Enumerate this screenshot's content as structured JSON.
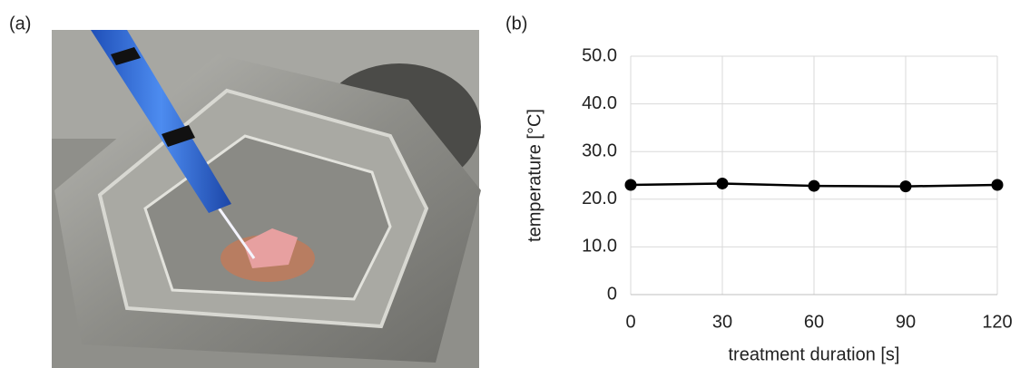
{
  "panel_labels": [
    "(a)",
    "(b)"
  ],
  "chart_data": {
    "type": "line",
    "x_label": "treatment duration [s]",
    "y_label": "temperature [°C]",
    "x": [
      0,
      30,
      60,
      90,
      120
    ],
    "series": [
      {
        "color": "#000000",
        "values": [
          23.0,
          23.3,
          22.8,
          22.7,
          23.0
        ]
      }
    ],
    "xlim": [
      0,
      120
    ],
    "xticks": [
      0,
      30,
      60,
      90,
      120
    ],
    "ylim": [
      0,
      50
    ],
    "yticks": [
      0,
      {
        "value": 10,
        "label": "10.0"
      },
      {
        "value": 20,
        "label": "20.0"
      },
      {
        "value": 30,
        "label": "30.0"
      },
      {
        "value": 40,
        "label": "40.0"
      },
      {
        "value": 50,
        "label": "50.0"
      }
    ],
    "grid": true
  }
}
